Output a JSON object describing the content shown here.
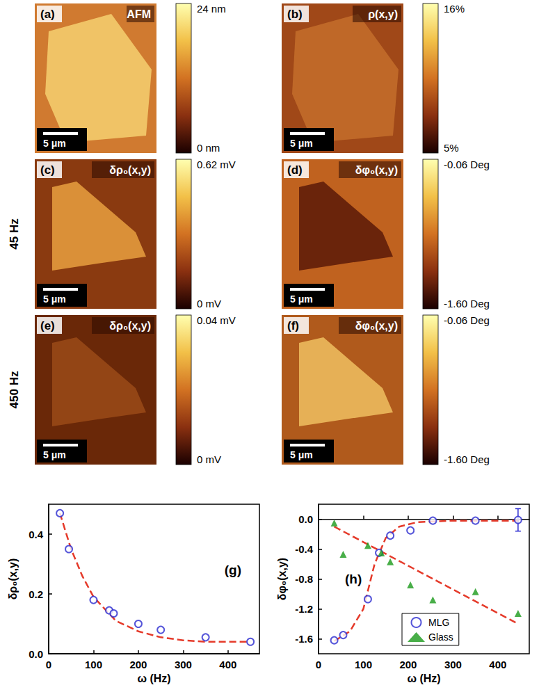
{
  "image_panels": {
    "scale_bar": "5 μm",
    "row_labels": [
      "45 Hz",
      "450 Hz"
    ],
    "panels": [
      {
        "letter": "(a)",
        "label": "AFM",
        "colorbar": [
          "24 nm",
          "0 nm"
        ]
      },
      {
        "letter": "(b)",
        "label": "ρ(x,y)",
        "colorbar": [
          "16%",
          "5%"
        ]
      },
      {
        "letter": "(c)",
        "label": "δρ₀(x,y)",
        "colorbar": [
          "0.62 mV",
          "0 mV"
        ]
      },
      {
        "letter": "(d)",
        "label": "δφ₀(x,y)",
        "colorbar": [
          "-0.06 Deg",
          "-1.60 Deg"
        ]
      },
      {
        "letter": "(e)",
        "label": "δρ₀(x,y)",
        "colorbar": [
          "0.04 mV",
          "0 mV"
        ]
      },
      {
        "letter": "(f)",
        "label": "δφ₀(x,y)",
        "colorbar": [
          "-0.06 Deg",
          "-1.60 Deg"
        ]
      }
    ]
  },
  "chart_data": [
    {
      "type": "scatter",
      "annotation": "(g)",
      "x_label": "ω (Hz)",
      "y_label": "δρ₀(x,y)",
      "xlim": [
        0,
        470
      ],
      "xticks": [
        0,
        100,
        200,
        300,
        400
      ],
      "ylim": [
        0,
        0.5
      ],
      "yticks": [
        {
          "value": 0,
          "label": "0.0"
        },
        {
          "value": 0.2,
          "label": "0.2"
        },
        {
          "value": 0.4,
          "label": "0.4"
        }
      ],
      "grid": false,
      "series": [
        {
          "type": "scatter",
          "marker": "open_circle",
          "color": "#2a2ad0",
          "x": [
            25,
            45,
            100,
            135,
            145,
            200,
            250,
            350,
            450
          ],
          "values": [
            0.47,
            0.35,
            0.18,
            0.145,
            0.135,
            0.1,
            0.08,
            0.055,
            0.04
          ]
        },
        {
          "type": "line",
          "line_style": "dashed",
          "color": "#e53a2a",
          "x": [
            25,
            50,
            75,
            100,
            150,
            200,
            250,
            300,
            350,
            450
          ],
          "values": [
            0.47,
            0.35,
            0.26,
            0.19,
            0.11,
            0.075,
            0.055,
            0.045,
            0.04,
            0.04
          ]
        }
      ]
    },
    {
      "type": "scatter",
      "annotation": "(h)",
      "x_label": "ω (Hz)",
      "y_label": "δφ₀(x,y)",
      "xlim": [
        0,
        470
      ],
      "xticks": [
        0,
        100,
        200,
        300,
        400
      ],
      "ylim": [
        -1.8,
        0.2
      ],
      "yticks": [
        {
          "value": -1.6,
          "label": "-1.6"
        },
        {
          "value": -1.2,
          "label": "-1.2"
        },
        {
          "value": -0.8,
          "label": "-0.8"
        },
        {
          "value": -0.4,
          "label": "-0.4"
        },
        {
          "value": 0,
          "label": "0.0"
        }
      ],
      "grid": false,
      "legend": "bottom",
      "series": [
        {
          "name": "MLG",
          "type": "scatter",
          "marker": "open_circle",
          "color": "#2a2ad0",
          "x": [
            35,
            55,
            110,
            135,
            160,
            205,
            255,
            350,
            445
          ],
          "values": [
            -1.62,
            -1.55,
            -1.07,
            -0.45,
            -0.22,
            -0.15,
            -0.02,
            -0.02,
            -0.01
          ],
          "errors": [
            null,
            null,
            null,
            null,
            null,
            null,
            null,
            null,
            0.15
          ]
        },
        {
          "name": "Glass",
          "type": "scatter",
          "marker": "triangle",
          "color": "#1a9a1a",
          "x": [
            35,
            55,
            110,
            140,
            160,
            205,
            255,
            350,
            445
          ],
          "values": [
            -0.05,
            -0.47,
            -0.35,
            -0.45,
            -0.57,
            -0.88,
            -1.08,
            -0.97,
            -1.26
          ]
        },
        {
          "type": "line",
          "line_style": "dashed",
          "color": "#e53a2a",
          "x": [
            35,
            70,
            100,
            125,
            150,
            180,
            220,
            300,
            450
          ],
          "values": [
            -1.63,
            -1.5,
            -1.2,
            -0.6,
            -0.25,
            -0.1,
            -0.04,
            -0.02,
            -0.02
          ]
        },
        {
          "type": "line",
          "line_style": "dashed",
          "color": "#e53a2a",
          "x": [
            35,
            445
          ],
          "values": [
            -0.1,
            -1.4
          ]
        }
      ]
    }
  ]
}
